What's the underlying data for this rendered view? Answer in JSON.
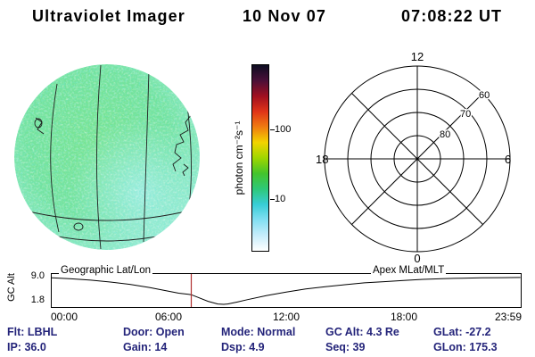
{
  "header": {
    "title": "Ultraviolet Imager",
    "date": "10 Nov 07",
    "time": "07:08:22 UT"
  },
  "colorbar": {
    "label": "photon cm⁻²s⁻¹",
    "tick_labels": [
      "100",
      "10"
    ],
    "scale": "log",
    "colors_top_to_bottom": [
      "#0d0d22",
      "#4a1038",
      "#a01020",
      "#e03418",
      "#f07c10",
      "#f2d400",
      "#9fd600",
      "#44c42c",
      "#2ec878",
      "#38cdd6",
      "#82dff2",
      "#c6edfb",
      "#ffffff"
    ]
  },
  "polar_plot": {
    "mlt_top": "12",
    "mlt_left": "18",
    "mlt_right": "6",
    "mlt_bottom": "0",
    "mlat_labels": [
      "60",
      "70",
      "80"
    ]
  },
  "strip_chart": {
    "overlay_left": "Geographic Lat/Lon",
    "overlay_right": "Apex MLat/MLT",
    "y_axis_label": "GC Alt",
    "y_tick_labels": [
      "9.0",
      "1.8"
    ],
    "x_tick_labels": [
      "00:00",
      "06:00",
      "12:00",
      "18:00",
      "23:59"
    ]
  },
  "status_rows": {
    "row1": [
      "Flt: LBHL",
      "Door: Open",
      "Mode: Normal",
      "GC Alt: 4.3 Re",
      "GLat: -27.2"
    ],
    "row2": [
      "IP: 36.0",
      "Gain: 14",
      "Dsp: 4.9",
      "Seq: 39",
      "GLon: 175.3"
    ]
  },
  "chart_data": [
    {
      "type": "heatmap",
      "title": "Ultraviolet imager Earth-disk image",
      "colorbar_label": "photon cm⁻²s⁻¹",
      "colorbar_scale": "log",
      "colorbar_ticks": [
        10,
        100
      ],
      "note": "Noisy circular UV image of the Earth disk, mostly 5-20 photon cm⁻²s⁻¹ (green/cyan speckle, lighter cyan toward lower right), overlaid with geographic lat/lon gridlines and faint coastlines"
    },
    {
      "type": "line",
      "title": "Spacecraft geocentric altitude vs UT",
      "ylabel": "GC Alt",
      "ylim": [
        1.8,
        9.0
      ],
      "x_ticks": [
        "00:00",
        "06:00",
        "12:00",
        "18:00",
        "23:59"
      ],
      "x_hours": [
        0,
        1,
        2,
        3,
        4,
        5,
        6,
        6.5,
        7,
        7.14,
        7.5,
        8,
        8.5,
        8.8,
        9,
        9.5,
        10,
        11,
        12,
        13,
        14,
        15,
        16,
        17,
        18,
        19,
        20,
        21,
        22,
        23,
        23.98
      ],
      "values_re": [
        8.7,
        8.45,
        8.1,
        7.6,
        7.0,
        6.2,
        5.2,
        4.7,
        4.4,
        4.3,
        3.6,
        2.6,
        1.9,
        1.8,
        1.9,
        2.4,
        3.0,
        4.1,
        5.0,
        5.8,
        6.4,
        6.9,
        7.4,
        7.7,
        8.0,
        8.3,
        8.5,
        8.6,
        8.7,
        8.75,
        8.8
      ],
      "current_time_marker_hours": 7.14,
      "marker_color": "#b03030",
      "panel_labels": [
        "Geographic Lat/Lon",
        "Apex MLat/MLT"
      ],
      "grid": false
    },
    {
      "type": "other",
      "title": "Apex MLat/MLT polar grid",
      "mlt_labels": [
        "12",
        "18",
        "6",
        "0"
      ],
      "mlat_rings": [
        60,
        70,
        80
      ],
      "note": "Empty polar coordinate grid: 4 concentric rings, 8 radial spokes every 45 degrees, no data plotted"
    }
  ]
}
